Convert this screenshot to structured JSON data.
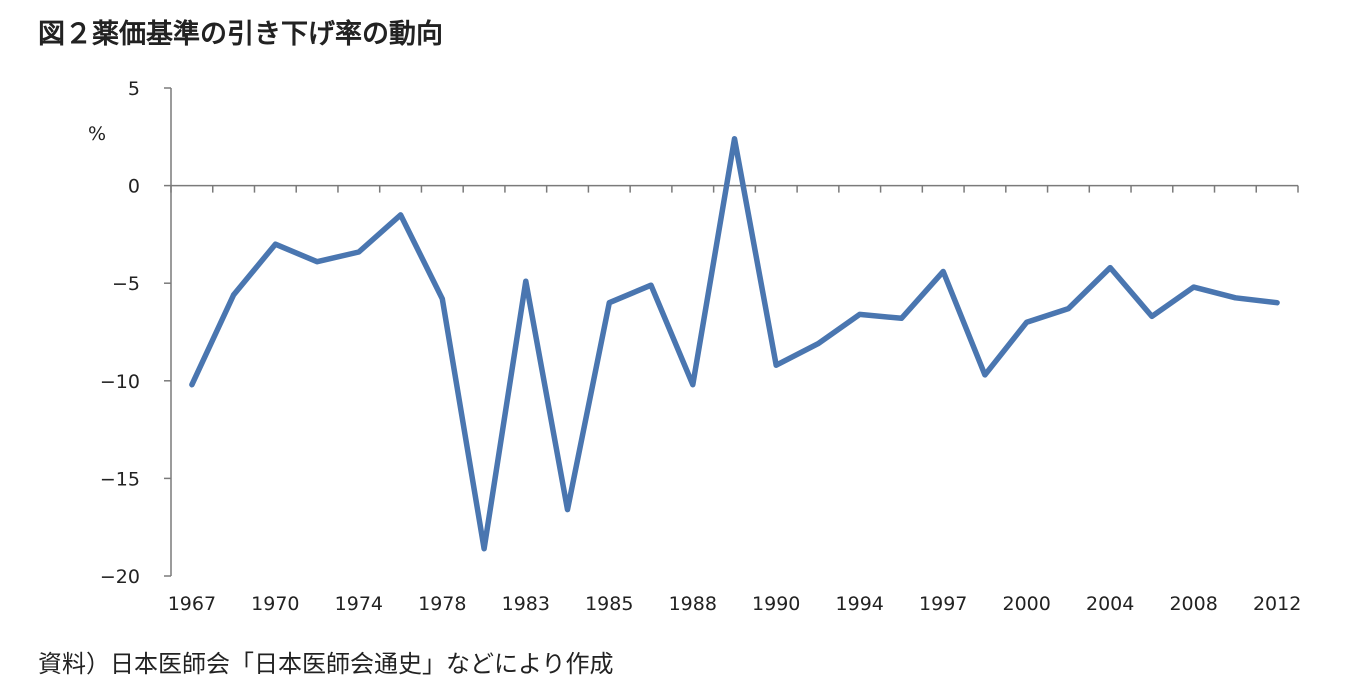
{
  "title": "図２薬価基準の引き下げ率の動向",
  "source": "資料）日本医師会「日本医師会通史」などにより作成",
  "chart_data": {
    "type": "line",
    "title": "図２薬価基準の引き下げ率の動向",
    "ylabel": "%",
    "ylim": [
      -20,
      5
    ],
    "yticks": [
      5,
      0,
      -5,
      -10,
      -15,
      -20
    ],
    "ytick_labels": [
      "5",
      "0",
      "−5",
      "−10",
      "−15",
      "−20"
    ],
    "categories": [
      "1967",
      "",
      "1970",
      "",
      "1974",
      "",
      "1978",
      "",
      "1983",
      "",
      "1985",
      "",
      "1988",
      "",
      "1990",
      "",
      "1994",
      "",
      "1997",
      "",
      "2000",
      "",
      "2004",
      "",
      "2008",
      "",
      "2012"
    ],
    "values": [
      -10.2,
      -5.6,
      -3.0,
      -3.9,
      -3.4,
      -1.5,
      -5.8,
      -18.6,
      -4.9,
      -16.6,
      -6.0,
      -5.1,
      -10.2,
      2.4,
      -9.2,
      -8.1,
      -6.6,
      -6.8,
      -4.4,
      -9.7,
      -7.0,
      -6.3,
      -4.2,
      -6.7,
      -5.2,
      -5.75,
      -6.0
    ],
    "grid": false,
    "legend": "none",
    "line_color": "#4a76b0"
  }
}
